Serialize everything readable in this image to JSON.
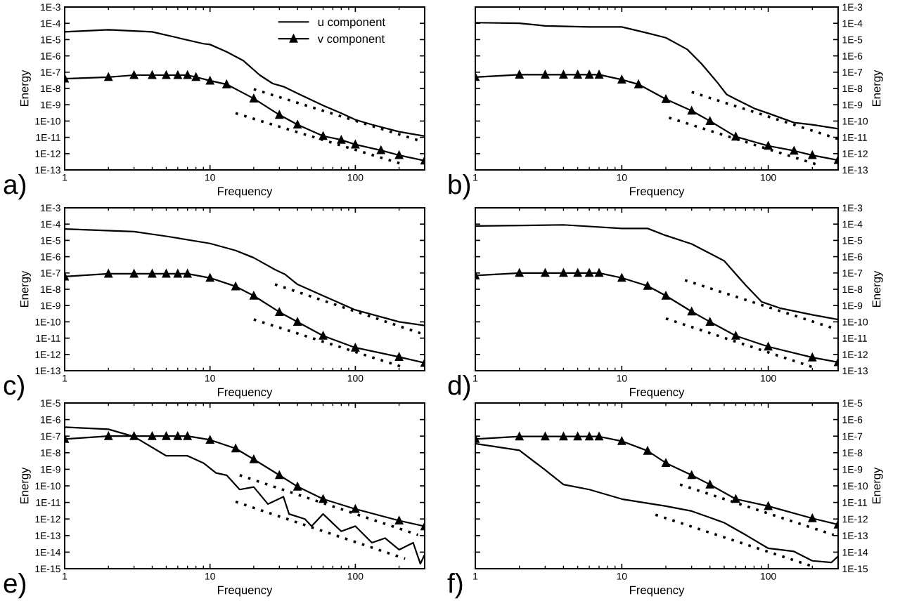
{
  "chart_data": [
    {
      "type": "line",
      "xlabel": "Frequency",
      "ylabel": "Energy",
      "annotations": [
        "a)"
      ],
      "log": "xy",
      "legend": "top right",
      "xlim": [
        1,
        300
      ],
      "xticks": [
        1,
        10,
        100
      ],
      "ylim": [
        1e-13,
        0.001
      ],
      "yticks": [
        {
          "value": 1e-13,
          "label": "1E-13"
        },
        {
          "value": 1e-12,
          "label": "1E-12"
        },
        {
          "value": 1e-11,
          "label": "1E-11"
        },
        {
          "value": 1e-10,
          "label": "1E-10"
        },
        {
          "value": 1e-09,
          "label": "1E-9"
        },
        {
          "value": 1e-08,
          "label": "1E-8"
        },
        {
          "value": 1e-07,
          "label": "1E-7"
        },
        {
          "value": 1e-06,
          "label": "1E-6"
        },
        {
          "value": 1e-05,
          "label": "1E-5"
        },
        {
          "value": 0.0001,
          "label": "1E-4"
        },
        {
          "value": 0.001,
          "label": "1E-3"
        }
      ],
      "series": [
        {
          "name": "u component",
          "color": "#000000",
          "marker": "none",
          "line_style": "solid",
          "x": [
            1,
            2,
            4,
            6,
            9,
            10,
            13,
            17,
            22,
            27,
            32,
            40,
            60,
            80,
            100,
            130,
            200,
            300
          ],
          "values": [
            3e-05,
            4e-05,
            3e-05,
            1.3e-05,
            5.6e-06,
            5e-06,
            1.8e-06,
            5e-07,
            6.6e-08,
            2e-08,
            1.3e-08,
            5e-09,
            9e-10,
            3e-10,
            1.2e-10,
            6e-11,
            2.2e-11,
            1.2e-11
          ]
        },
        {
          "name": "v component",
          "color": "#000000",
          "marker": "triangle",
          "line_style": "solid",
          "x": [
            1,
            2,
            3,
            4,
            5,
            6,
            7,
            8,
            10,
            13,
            20,
            30,
            40,
            60,
            80,
            100,
            150,
            200,
            300
          ],
          "values": [
            4e-08,
            5e-08,
            6.6e-08,
            6.6e-08,
            6.6e-08,
            6.6e-08,
            6.6e-08,
            5e-08,
            3e-08,
            1.8e-08,
            2.4e-09,
            2.4e-10,
            6e-11,
            1.2e-11,
            7e-12,
            3.6e-12,
            1.6e-12,
            8e-13,
            3.7e-13
          ]
        },
        {
          "color": "#000000",
          "marker": "none",
          "line_style": "dotted",
          "x": [
            20,
            280
          ],
          "values": [
            9e-09,
            6e-12
          ]
        },
        {
          "color": "#000000",
          "marker": "none",
          "line_style": "dotted",
          "x": [
            15,
            220
          ],
          "values": [
            3e-10,
            2e-13
          ]
        }
      ]
    },
    {
      "type": "line",
      "xlabel": "Frequency",
      "ylabel": "Energy",
      "annotations": [
        "b)"
      ],
      "log": "xy",
      "xlim": [
        1,
        300
      ],
      "xticks": [
        1,
        10,
        100
      ],
      "ylim": [
        1e-13,
        0.001
      ],
      "yticks": [
        {
          "value": 1e-13,
          "label": "1E-13"
        },
        {
          "value": 1e-12,
          "label": "1E-12"
        },
        {
          "value": 1e-11,
          "label": "1E-11"
        },
        {
          "value": 1e-10,
          "label": "1E-10"
        },
        {
          "value": 1e-09,
          "label": "1E-9"
        },
        {
          "value": 1e-08,
          "label": "1E-8"
        },
        {
          "value": 1e-07,
          "label": "1E-7"
        },
        {
          "value": 1e-06,
          "label": "1E-6"
        },
        {
          "value": 1e-05,
          "label": "1E-5"
        },
        {
          "value": 0.0001,
          "label": "1E-4"
        },
        {
          "value": 0.001,
          "label": "1E-3"
        }
      ],
      "series": [
        {
          "color": "#000000",
          "marker": "none",
          "line_style": "solid",
          "x": [
            1,
            2,
            3,
            6,
            10,
            15,
            20,
            28,
            35,
            45,
            52,
            60,
            80,
            100,
            150,
            200,
            300
          ],
          "values": [
            0.00011,
            0.0001,
            7e-05,
            6e-05,
            6e-05,
            2.5e-05,
            1.3e-05,
            2.5e-06,
            3.3e-07,
            2.3e-08,
            4.3e-09,
            2.2e-09,
            6e-10,
            3e-10,
            8e-11,
            6e-11,
            3.4e-11
          ]
        },
        {
          "color": "#000000",
          "marker": "triangle",
          "line_style": "solid",
          "x": [
            1,
            2,
            3,
            4,
            5,
            6,
            7,
            10,
            13,
            20,
            30,
            40,
            60,
            100,
            150,
            200,
            300
          ],
          "values": [
            5e-08,
            7e-08,
            7e-08,
            7e-08,
            7e-08,
            7e-08,
            7e-08,
            3.5e-08,
            1.8e-08,
            2.2e-09,
            4.3e-10,
            1e-10,
            1.1e-11,
            3e-12,
            1.5e-12,
            8e-13,
            4e-13
          ]
        },
        {
          "color": "#000000",
          "marker": "none",
          "line_style": "dotted",
          "x": [
            30,
            300
          ],
          "values": [
            6e-09,
            8e-12
          ]
        },
        {
          "color": "#000000",
          "marker": "none",
          "line_style": "dotted",
          "x": [
            21,
            220
          ],
          "values": [
            1.6e-10,
            2e-13
          ]
        }
      ]
    },
    {
      "type": "line",
      "xlabel": "Frequency",
      "ylabel": "Energy",
      "annotations": [
        "c)"
      ],
      "log": "xy",
      "xlim": [
        1,
        300
      ],
      "xticks": [
        1,
        10,
        100
      ],
      "ylim": [
        1e-13,
        0.001
      ],
      "yticks": [
        {
          "value": 1e-13,
          "label": "1E-13"
        },
        {
          "value": 1e-12,
          "label": "1E-12"
        },
        {
          "value": 1e-11,
          "label": "1E-11"
        },
        {
          "value": 1e-10,
          "label": "1E-10"
        },
        {
          "value": 1e-09,
          "label": "1E-9"
        },
        {
          "value": 1e-08,
          "label": "1E-8"
        },
        {
          "value": 1e-07,
          "label": "1E-7"
        },
        {
          "value": 1e-06,
          "label": "1E-6"
        },
        {
          "value": 1e-05,
          "label": "1E-5"
        },
        {
          "value": 0.0001,
          "label": "1E-4"
        },
        {
          "value": 0.001,
          "label": "1E-3"
        }
      ],
      "series": [
        {
          "color": "#000000",
          "marker": "none",
          "line_style": "solid",
          "x": [
            1,
            3,
            5,
            10,
            15,
            20,
            28,
            33,
            40,
            60,
            100,
            200,
            300
          ],
          "values": [
            5e-05,
            3.5e-05,
            1.8e-05,
            6.5e-06,
            2.4e-06,
            8.6e-07,
            1.6e-07,
            8e-08,
            2e-08,
            4e-09,
            5.4e-10,
            1e-10,
            6e-11
          ]
        },
        {
          "color": "#000000",
          "marker": "triangle",
          "line_style": "solid",
          "x": [
            1,
            2,
            3,
            4,
            5,
            6,
            7,
            10,
            15,
            20,
            30,
            40,
            60,
            100,
            200,
            300
          ],
          "values": [
            6e-08,
            9e-08,
            9e-08,
            9e-08,
            9e-08,
            9e-08,
            9e-08,
            5e-08,
            1.5e-08,
            4e-09,
            4e-10,
            1e-10,
            1.4e-11,
            2.6e-12,
            7e-13,
            3e-13
          ]
        },
        {
          "color": "#000000",
          "marker": "none",
          "line_style": "dotted",
          "x": [
            28,
            280
          ],
          "values": [
            2e-08,
            2e-11
          ]
        },
        {
          "color": "#000000",
          "marker": "none",
          "line_style": "dotted",
          "x": [
            20,
            220
          ],
          "values": [
            1.4e-10,
            1.5e-13
          ]
        }
      ]
    },
    {
      "type": "line",
      "xlabel": "Frequency",
      "ylabel": "Energy",
      "annotations": [
        "d)"
      ],
      "log": "xy",
      "xlim": [
        1,
        300
      ],
      "xticks": [
        1,
        10,
        100
      ],
      "ylim": [
        1e-13,
        0.001
      ],
      "yticks": [
        {
          "value": 1e-13,
          "label": "1E-13"
        },
        {
          "value": 1e-12,
          "label": "1E-12"
        },
        {
          "value": 1e-11,
          "label": "1E-11"
        },
        {
          "value": 1e-10,
          "label": "1E-10"
        },
        {
          "value": 1e-09,
          "label": "1E-9"
        },
        {
          "value": 1e-08,
          "label": "1E-8"
        },
        {
          "value": 1e-07,
          "label": "1E-7"
        },
        {
          "value": 1e-06,
          "label": "1E-6"
        },
        {
          "value": 1e-05,
          "label": "1E-5"
        },
        {
          "value": 0.0001,
          "label": "1E-4"
        },
        {
          "value": 0.001,
          "label": "1E-3"
        }
      ],
      "series": [
        {
          "color": "#000000",
          "marker": "none",
          "line_style": "solid",
          "x": [
            1,
            4,
            10,
            15,
            20,
            30,
            50,
            70,
            90,
            120,
            200,
            300
          ],
          "values": [
            7.6e-05,
            9e-05,
            5.4e-05,
            5.4e-05,
            2e-05,
            6e-06,
            5.6e-07,
            1.8e-08,
            1.7e-09,
            7e-10,
            2.7e-10,
            1.4e-10
          ]
        },
        {
          "color": "#000000",
          "marker": "triangle",
          "line_style": "solid",
          "x": [
            1,
            2,
            3,
            4,
            5,
            6,
            7,
            10,
            15,
            20,
            30,
            40,
            60,
            100,
            200,
            300
          ],
          "values": [
            7e-08,
            1e-07,
            1e-07,
            1e-07,
            1e-07,
            1e-07,
            1e-07,
            5e-08,
            1.6e-08,
            4e-09,
            4.3e-10,
            1e-10,
            1.4e-11,
            3e-12,
            6.5e-13,
            3.3e-13
          ]
        },
        {
          "color": "#000000",
          "marker": "none",
          "line_style": "dotted",
          "x": [
            27,
            280
          ],
          "values": [
            3.6e-08,
            4e-11
          ]
        },
        {
          "color": "#000000",
          "marker": "none",
          "line_style": "dotted",
          "x": [
            20,
            200
          ],
          "values": [
            1.6e-10,
            1.7e-13
          ]
        }
      ]
    },
    {
      "type": "line",
      "xlabel": "Frequency",
      "ylabel": "Energy",
      "annotations": [
        "e)"
      ],
      "log": "xy",
      "xlim": [
        1,
        300
      ],
      "xticks": [
        1,
        10,
        100
      ],
      "ylim": [
        1e-15,
        1e-05
      ],
      "yticks": [
        {
          "value": 1e-15,
          "label": "1E-15"
        },
        {
          "value": 1e-14,
          "label": "1E-14"
        },
        {
          "value": 1e-13,
          "label": "1E-13"
        },
        {
          "value": 1e-12,
          "label": "1E-12"
        },
        {
          "value": 1e-11,
          "label": "1E-11"
        },
        {
          "value": 1e-10,
          "label": "1E-10"
        },
        {
          "value": 1e-09,
          "label": "1E-9"
        },
        {
          "value": 1e-08,
          "label": "1E-8"
        },
        {
          "value": 1e-07,
          "label": "1E-7"
        },
        {
          "value": 1e-06,
          "label": "1E-6"
        },
        {
          "value": 1e-05,
          "label": "1E-5"
        }
      ],
      "series": [
        {
          "color": "#000000",
          "marker": "none",
          "line_style": "solid",
          "x": [
            1,
            2,
            3,
            5,
            7,
            9,
            11,
            13,
            16,
            20,
            25,
            32,
            35,
            45,
            50,
            60,
            80,
            100,
            130,
            160,
            200,
            250,
            280,
            300
          ],
          "values": [
            3.5e-07,
            2.6e-07,
            9.4e-08,
            6.5e-09,
            6.5e-09,
            2.4e-09,
            6e-10,
            4.4e-10,
            6e-11,
            8.5e-11,
            8e-12,
            2.2e-11,
            2e-12,
            1e-12,
            3.7e-13,
            2e-12,
            1.8e-13,
            3.7e-13,
            3.7e-14,
            7e-14,
            1.4e-14,
            3.7e-14,
            2e-15,
            7e-15
          ]
        },
        {
          "color": "#000000",
          "marker": "triangle",
          "line_style": "solid",
          "x": [
            1,
            2,
            3,
            4,
            5,
            6,
            7,
            10,
            15,
            20,
            30,
            40,
            60,
            100,
            200,
            300
          ],
          "values": [
            6.7e-08,
            1e-07,
            1e-07,
            1e-07,
            1e-07,
            1e-07,
            1e-07,
            6e-08,
            1.8e-08,
            4e-09,
            4.4e-10,
            9e-11,
            1.6e-11,
            4e-12,
            8e-13,
            3.6e-13
          ]
        },
        {
          "color": "#000000",
          "marker": "none",
          "line_style": "dotted",
          "x": [
            16,
            270
          ],
          "values": [
            4.4e-10,
            1.1e-13
          ]
        },
        {
          "color": "#000000",
          "marker": "none",
          "line_style": "dotted",
          "x": [
            15,
            220
          ],
          "values": [
            1.1e-11,
            4e-15
          ]
        }
      ]
    },
    {
      "type": "line",
      "xlabel": "Frequency",
      "ylabel": "Energy",
      "annotations": [
        "f)"
      ],
      "log": "xy",
      "xlim": [
        1,
        300
      ],
      "xticks": [
        1,
        10,
        100
      ],
      "ylim": [
        1e-15,
        1e-05
      ],
      "yticks": [
        {
          "value": 1e-15,
          "label": "1E-15"
        },
        {
          "value": 1e-14,
          "label": "1E-14"
        },
        {
          "value": 1e-13,
          "label": "1E-13"
        },
        {
          "value": 1e-12,
          "label": "1E-12"
        },
        {
          "value": 1e-11,
          "label": "1E-11"
        },
        {
          "value": 1e-10,
          "label": "1E-10"
        },
        {
          "value": 1e-09,
          "label": "1E-9"
        },
        {
          "value": 1e-08,
          "label": "1E-8"
        },
        {
          "value": 1e-07,
          "label": "1E-7"
        },
        {
          "value": 1e-06,
          "label": "1E-6"
        },
        {
          "value": 1e-05,
          "label": "1E-5"
        }
      ],
      "series": [
        {
          "color": "#000000",
          "marker": "none",
          "line_style": "solid",
          "x": [
            1,
            2,
            3,
            4,
            6,
            10,
            20,
            30,
            50,
            70,
            100,
            150,
            200,
            270,
            300
          ],
          "values": [
            3.5e-08,
            1.4e-08,
            9e-10,
            1.2e-10,
            6e-11,
            1.6e-11,
            6e-12,
            3e-12,
            6e-13,
            1.1e-13,
            1.7e-14,
            1.1e-14,
            3e-15,
            2.4e-15,
            5.6e-15
          ]
        },
        {
          "color": "#000000",
          "marker": "triangle",
          "line_style": "solid",
          "x": [
            1,
            2,
            3,
            4,
            5,
            6,
            7,
            10,
            15,
            20,
            30,
            40,
            60,
            100,
            200,
            300
          ],
          "values": [
            6.7e-08,
            9.5e-08,
            9.5e-08,
            9.5e-08,
            9.5e-08,
            9.5e-08,
            9.5e-08,
            5e-08,
            1.3e-08,
            2.4e-09,
            4.4e-10,
            1.2e-10,
            1.6e-11,
            6e-12,
            1.1e-12,
            4.6e-13
          ]
        },
        {
          "color": "#000000",
          "marker": "none",
          "line_style": "dotted",
          "x": [
            25,
            280
          ],
          "values": [
            1.2e-10,
            1.1e-13
          ]
        },
        {
          "color": "#000000",
          "marker": "none",
          "line_style": "dotted",
          "x": [
            17,
            200
          ],
          "values": [
            1.8e-12,
            1.4e-15
          ]
        }
      ]
    }
  ]
}
